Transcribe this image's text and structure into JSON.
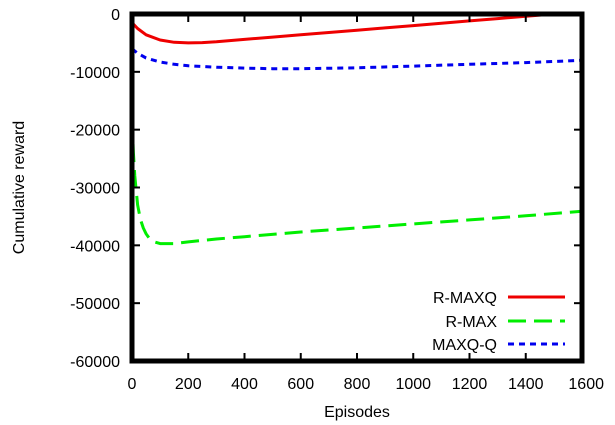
{
  "chart_data": {
    "type": "line",
    "title": "",
    "xlabel": "Episodes",
    "ylabel": "Cumulative reward",
    "xlim": [
      0,
      1600
    ],
    "ylim": [
      -60000,
      0
    ],
    "xticks": [
      0,
      200,
      400,
      600,
      800,
      1000,
      1200,
      1400,
      1600
    ],
    "yticks": [
      0,
      -10000,
      -20000,
      -30000,
      -40000,
      -50000,
      -60000
    ],
    "grid": false,
    "legend_position": "bottom-right",
    "series": [
      {
        "name": "R-MAXQ",
        "color": "#ee0000",
        "dash": "solid",
        "x": [
          0,
          20,
          50,
          100,
          150,
          200,
          250,
          300,
          400,
          500,
          600,
          700,
          800,
          900,
          1000,
          1100,
          1200,
          1300,
          1400,
          1500,
          1600
        ],
        "y": [
          -1500,
          -2500,
          -3600,
          -4500,
          -4900,
          -5000,
          -4950,
          -4800,
          -4400,
          -4000,
          -3600,
          -3200,
          -2800,
          -2400,
          -2000,
          -1600,
          -1200,
          -800,
          -400,
          0,
          0
        ]
      },
      {
        "name": "R-MAX",
        "color": "#00ee00",
        "dash": "dashed",
        "x": [
          0,
          5,
          10,
          20,
          30,
          40,
          50,
          60,
          80,
          100,
          150,
          200,
          300,
          400,
          600,
          800,
          1000,
          1200,
          1400,
          1600
        ],
        "y": [
          -18000,
          -24000,
          -28000,
          -33000,
          -35500,
          -37000,
          -38000,
          -38700,
          -39400,
          -39700,
          -39700,
          -39400,
          -38900,
          -38500,
          -37700,
          -37000,
          -36300,
          -35600,
          -34900,
          -34100
        ]
      },
      {
        "name": "MAXQ-Q",
        "color": "#0000ee",
        "dash": "dotted",
        "x": [
          0,
          20,
          50,
          100,
          150,
          200,
          300,
          400,
          500,
          600,
          800,
          1000,
          1200,
          1400,
          1600
        ],
        "y": [
          -6000,
          -6800,
          -7600,
          -8300,
          -8700,
          -8950,
          -9200,
          -9350,
          -9450,
          -9450,
          -9300,
          -9000,
          -8700,
          -8400,
          -8000
        ]
      }
    ]
  }
}
